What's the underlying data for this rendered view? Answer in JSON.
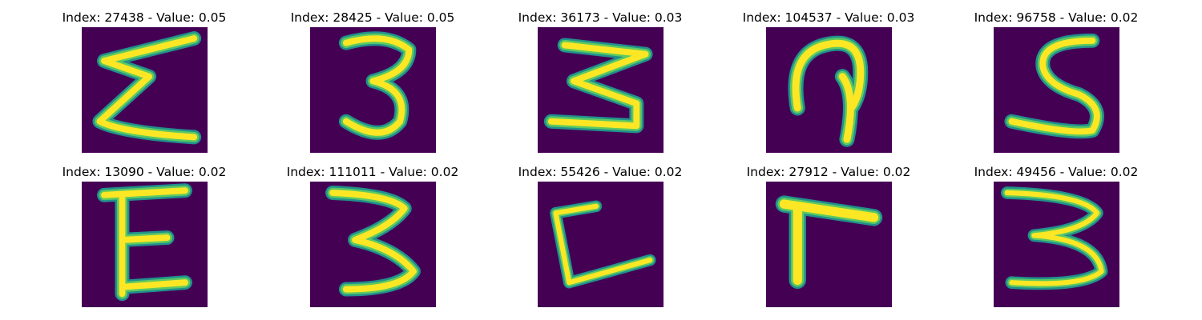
{
  "colors": {
    "background": "#440154",
    "stroke_edge": "#21918c",
    "stroke_mid": "#5ec962",
    "stroke_core": "#fde725"
  },
  "panels": [
    {
      "title": "Index: 27438 - Value: 0.05",
      "index": 27438,
      "value": 0.05,
      "glyph": "Σ-like (sigma/E mirrored)"
    },
    {
      "title": "Index: 28425 - Value: 0.05",
      "index": 28425,
      "value": 0.05,
      "glyph": "3"
    },
    {
      "title": "Index: 36173 - Value: 0.03",
      "index": 36173,
      "value": 0.03,
      "glyph": "3 angular"
    },
    {
      "title": "Index: 104537 - Value: 0.03",
      "index": 104537,
      "value": 0.03,
      "glyph": "loop with stem"
    },
    {
      "title": "Index: 96758 - Value: 0.02",
      "index": 96758,
      "value": 0.02,
      "glyph": "S"
    },
    {
      "title": "Index: 13090 - Value: 0.02",
      "index": 13090,
      "value": 0.02,
      "glyph": "E"
    },
    {
      "title": "Index: 111011 - Value: 0.02",
      "index": 111011,
      "value": 0.02,
      "glyph": "3"
    },
    {
      "title": "Index: 55426 - Value: 0.02",
      "index": 55426,
      "value": 0.02,
      "glyph": "L / C"
    },
    {
      "title": "Index: 27912 - Value: 0.02",
      "index": 27912,
      "value": 0.02,
      "glyph": "Γ"
    },
    {
      "title": "Index: 49456 - Value: 0.02",
      "index": 49456,
      "value": 0.02,
      "glyph": "3"
    }
  ]
}
